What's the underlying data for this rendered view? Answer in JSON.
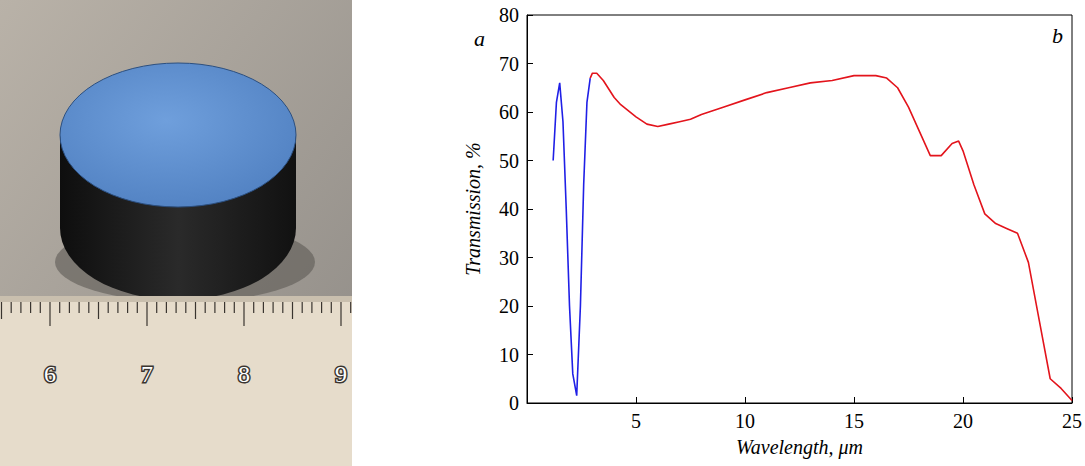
{
  "photo": {
    "annotations": [
      "a"
    ],
    "ruler_labels": [
      6,
      7,
      8,
      9
    ]
  },
  "chart_data": {
    "type": "line",
    "annotations": [
      "b"
    ],
    "xlabel": "Wavelength, μm",
    "ylabel": "Transmission, %",
    "xlim": [
      0,
      25
    ],
    "xticks": [
      5,
      10,
      15,
      20,
      25
    ],
    "ylim": [
      0,
      80
    ],
    "yticks": [
      0,
      10,
      20,
      30,
      40,
      50,
      60,
      70,
      80
    ],
    "grid": false,
    "series": [
      {
        "color": "#1f1fe6",
        "x": [
          1.2,
          1.35,
          1.5,
          1.65,
          1.8,
          1.95,
          2.1,
          2.28,
          2.45,
          2.6,
          2.75,
          2.9
        ],
        "values": [
          50,
          62,
          66,
          58,
          40,
          20,
          6,
          1.5,
          20,
          45,
          62,
          67
        ]
      },
      {
        "color": "#e3141c",
        "x": [
          2.9,
          3.0,
          3.2,
          3.5,
          4.0,
          4.3,
          5.0,
          5.5,
          6.0,
          6.5,
          7.0,
          7.5,
          8.0,
          9.0,
          10.0,
          11.0,
          12.0,
          13.0,
          14.0,
          15.0,
          16.0,
          16.5,
          17.0,
          17.5,
          18.0,
          18.5,
          19.0,
          19.5,
          19.8,
          20.0,
          20.5,
          21.0,
          21.5,
          22.0,
          22.5,
          23.0,
          23.5,
          24.0,
          24.5,
          25.0
        ],
        "values": [
          67,
          68,
          68,
          66.5,
          63,
          61.5,
          59,
          57.5,
          57,
          57.5,
          58,
          58.5,
          59.5,
          61,
          62.5,
          64,
          65,
          66,
          66.5,
          67.5,
          67.5,
          67,
          65,
          61,
          56,
          51,
          51,
          53.5,
          54,
          52,
          45,
          39,
          37,
          36,
          35,
          29,
          17,
          5,
          3,
          0.5
        ]
      }
    ]
  }
}
